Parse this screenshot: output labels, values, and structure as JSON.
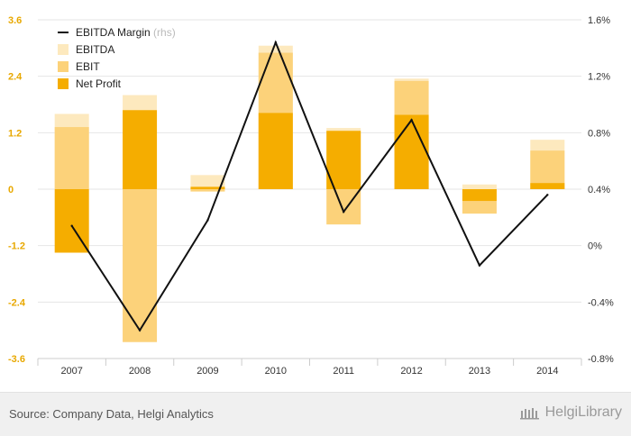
{
  "chart_data": {
    "type": "bar",
    "categories": [
      "2007",
      "2008",
      "2009",
      "2010",
      "2011",
      "2012",
      "2013",
      "2014"
    ],
    "series": [
      {
        "name": "EBITDA",
        "kind": "bar",
        "axis": "left",
        "color": "#fde9be",
        "values": [
          1.6,
          2.0,
          0.3,
          3.05,
          1.3,
          2.35,
          0.1,
          1.05
        ]
      },
      {
        "name": "EBIT",
        "kind": "bar",
        "axis": "left",
        "color": "#fcd27a",
        "values": [
          1.32,
          -3.25,
          -0.05,
          2.9,
          -0.75,
          2.3,
          -0.52,
          0.82
        ]
      },
      {
        "name": "Net Profit",
        "kind": "bar",
        "axis": "left",
        "color": "#f5ad00",
        "values": [
          -1.35,
          1.68,
          0.05,
          1.62,
          1.24,
          1.58,
          -0.25,
          0.13
        ]
      },
      {
        "name": "EBITDA Margin",
        "label_suffix": "(rhs)",
        "kind": "line",
        "axis": "right",
        "color": "#111111",
        "values": [
          0.14,
          -0.6,
          0.18,
          1.44,
          0.24,
          0.89,
          -0.14,
          0.36
        ]
      }
    ],
    "left_axis": {
      "min": -3.6,
      "max": 3.6,
      "ticks": [
        "3.6",
        "2.4",
        "1.2",
        "0",
        "-1.2",
        "-2.4",
        "-3.6"
      ],
      "tick_color": "#e8a800"
    },
    "right_axis": {
      "min": -0.8,
      "max": 1.6,
      "ticks": [
        "1.6%",
        "1.2%",
        "0.8%",
        "0.4%",
        "0%",
        "-0.4%",
        "-0.8%"
      ],
      "tick_color": "#333333"
    },
    "legend_position": "top-left",
    "grid": true
  },
  "footer": {
    "source": "Source: Company Data, Helgi Analytics",
    "logo_text": "HelgiLibrary"
  }
}
